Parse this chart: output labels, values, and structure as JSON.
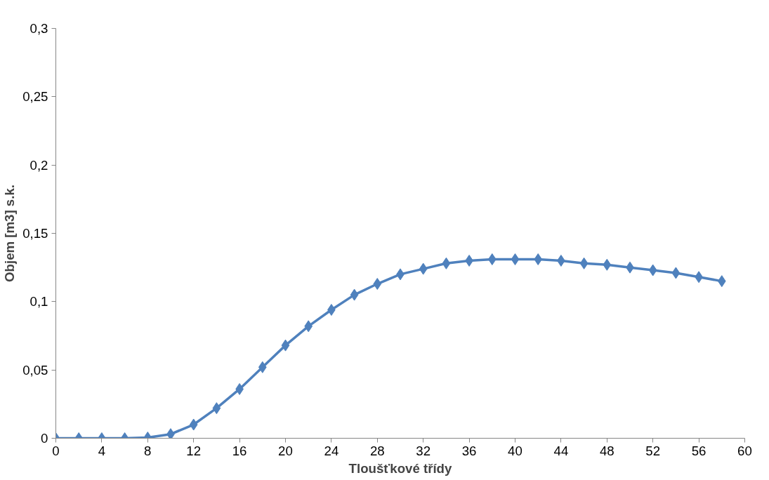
{
  "chart_data": {
    "type": "line",
    "xlabel": "Tloušťkové třídy",
    "ylabel": "Objem [m3] s.k.",
    "x": [
      0,
      2,
      4,
      6,
      8,
      10,
      12,
      14,
      16,
      18,
      20,
      22,
      24,
      26,
      28,
      30,
      32,
      34,
      36,
      38,
      40,
      42,
      44,
      46,
      48,
      50,
      52,
      54,
      56,
      58
    ],
    "series": [
      {
        "color": "#4f81bd",
        "values": [
          0,
          0,
          0,
          0,
          0.0005,
          0.003,
          0.01,
          0.022,
          0.036,
          0.052,
          0.068,
          0.082,
          0.094,
          0.105,
          0.113,
          0.12,
          0.124,
          0.128,
          0.13,
          0.131,
          0.131,
          0.131,
          0.13,
          0.128,
          0.127,
          0.125,
          0.123,
          0.121,
          0.118,
          0.115
        ]
      }
    ],
    "xlim": [
      0,
      60
    ],
    "xticks": [
      0,
      4,
      8,
      12,
      16,
      20,
      24,
      28,
      32,
      36,
      40,
      44,
      48,
      52,
      56,
      60
    ],
    "ylim": [
      0,
      0.3
    ],
    "yticks": [
      0,
      {
        "value": 0.05,
        "label": "0,05"
      },
      {
        "value": 0.1,
        "label": "0,1"
      },
      {
        "value": 0.15,
        "label": "0,15"
      },
      {
        "value": 0.2,
        "label": "0,2"
      },
      {
        "value": 0.25,
        "label": "0,25"
      },
      {
        "value": 0.3,
        "label": "0,3"
      }
    ],
    "grid": false,
    "marker": "diamond",
    "line_style": "solid"
  }
}
